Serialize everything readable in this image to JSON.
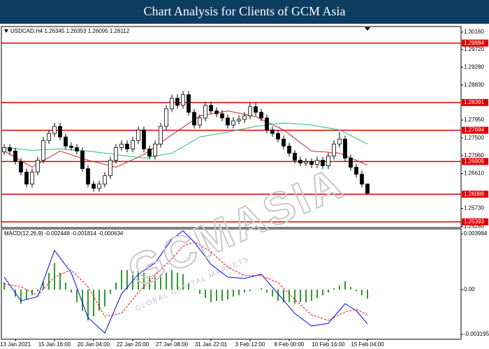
{
  "chart_data": {
    "type": "candlestick",
    "title": "Chart Analysis for Clients of GCM Asia",
    "header": "USDCAD,H4  1.26345 1.26353 1.26095 1.26112",
    "watermark": "GCMASIA",
    "watermark_sub": "GLOBAL CAPITAL MARKETS",
    "up_color": "#ffffff",
    "down_color": "#000000",
    "categories": [
      null,
      null,
      "13 Jan 2021",
      null,
      null,
      null,
      null,
      null,
      null,
      "15 Jan 16:00",
      null,
      null,
      null,
      null,
      null,
      null,
      "20 Jan 04:00",
      null,
      null,
      null,
      null,
      null,
      null,
      "22 Jan 20:00",
      null,
      null,
      null,
      null,
      null,
      null,
      "27 Jan 08:00",
      null,
      null,
      null,
      null,
      null,
      null,
      "31 Jan 22:01",
      null,
      null,
      null,
      null,
      null,
      null,
      "3 Feb 12:00",
      null,
      null,
      null,
      null,
      null,
      null,
      "8 Feb 00:00",
      null,
      null,
      null,
      null,
      null,
      null,
      "10 Feb 16:00",
      null,
      null,
      null,
      null,
      null,
      null,
      "15 Feb 04:00"
    ],
    "open": [
      1.2715,
      1.2726,
      1.27172,
      1.26907,
      1.26642,
      1.26341,
      1.26642,
      1.26942,
      1.27437,
      1.27614,
      1.27791,
      1.27526,
      1.27296,
      1.2726,
      1.27172,
      1.2673,
      1.26341,
      1.26235,
      1.26341,
      1.26553,
      1.26942,
      1.2726,
      1.27349,
      1.27225,
      1.27437,
      1.27703,
      1.27225,
      1.27048,
      1.27349,
      1.27791,
      1.28233,
      1.28498,
      1.28321,
      1.28587,
      1.28145,
      1.27826,
      1.28003,
      1.28321,
      1.2818,
      1.28109,
      1.28003,
      1.27826,
      1.27932,
      1.27968,
      1.28056,
      1.28286,
      1.28145,
      1.28003,
      1.27703,
      1.27614,
      1.27473,
      1.27296,
      1.27119,
      1.26942,
      1.26872,
      1.26907,
      1.26836,
      1.26942,
      1.26801,
      1.27048,
      1.27349,
      1.27473,
      1.26995,
      1.26765,
      1.26589,
      1.26345
    ],
    "high": [
      1.2735,
      1.2735,
      1.2726,
      1.2699,
      1.2673,
      1.2673,
      1.2703,
      1.2753,
      1.277,
      1.2788,
      1.2788,
      1.2761,
      1.2739,
      1.2735,
      1.2726,
      1.2682,
      1.2643,
      1.2643,
      1.2664,
      1.2703,
      1.2735,
      1.2744,
      1.2744,
      1.2753,
      1.2779,
      1.2779,
      1.2731,
      1.2744,
      1.2788,
      1.2832,
      1.2859,
      1.2859,
      1.2868,
      1.2868,
      1.2823,
      1.2809,
      1.2841,
      1.2841,
      1.2827,
      1.282,
      1.2809,
      1.2802,
      1.2806,
      1.2815,
      1.2838,
      1.2838,
      1.2823,
      1.2809,
      1.2779,
      1.277,
      1.2756,
      1.2738,
      1.272,
      1.2703,
      1.2699,
      1.2699,
      1.2703,
      1.2703,
      1.2713,
      1.2744,
      1.2765,
      1.2756,
      1.2708,
      1.2685,
      1.2668,
      1.26353
    ],
    "low": [
      1.2707,
      1.2709,
      1.2683,
      1.2656,
      1.2626,
      1.2626,
      1.2656,
      1.2686,
      1.2735,
      1.2753,
      1.2744,
      1.2721,
      1.2718,
      1.2709,
      1.2665,
      1.2626,
      1.2615,
      1.2615,
      1.2626,
      1.2647,
      1.2686,
      1.2718,
      1.2714,
      1.2714,
      1.2735,
      1.2714,
      1.2696,
      1.2696,
      1.2726,
      1.277,
      1.2815,
      1.2824,
      1.2824,
      1.2806,
      1.2774,
      1.2774,
      1.2792,
      1.281,
      1.2802,
      1.2792,
      1.2774,
      1.2774,
      1.2785,
      1.2788,
      1.2797,
      1.2806,
      1.2792,
      1.2762,
      1.2753,
      1.2739,
      1.2721,
      1.2703,
      1.2686,
      1.2679,
      1.2679,
      1.2675,
      1.2675,
      1.2672,
      1.2672,
      1.2696,
      1.2726,
      1.2691,
      1.2668,
      1.265,
      1.2626,
      1.26095
    ],
    "close": [
      1.2726,
      1.27172,
      1.26907,
      1.26642,
      1.26341,
      1.26642,
      1.26942,
      1.27437,
      1.27614,
      1.27791,
      1.27526,
      1.27296,
      1.2726,
      1.27172,
      1.2673,
      1.26341,
      1.26235,
      1.26341,
      1.26553,
      1.26942,
      1.2726,
      1.27349,
      1.27225,
      1.27437,
      1.27703,
      1.27225,
      1.27048,
      1.27349,
      1.27791,
      1.28233,
      1.28498,
      1.28321,
      1.28587,
      1.28145,
      1.27826,
      1.28003,
      1.28321,
      1.2818,
      1.28109,
      1.28003,
      1.27826,
      1.27932,
      1.27968,
      1.28056,
      1.28286,
      1.28145,
      1.28003,
      1.27703,
      1.27614,
      1.27473,
      1.27296,
      1.27119,
      1.26942,
      1.26872,
      1.26907,
      1.26836,
      1.26942,
      1.26801,
      1.27048,
      1.27349,
      1.27473,
      1.26995,
      1.26765,
      1.26589,
      1.26341,
      1.26112
    ],
    "ma_lines": [
      {
        "color": "#e02020",
        "x": [
          0,
          5,
          10,
          15,
          20,
          25,
          30,
          35,
          40,
          45,
          50,
          55,
          60,
          65
        ],
        "values": [
          1.27172,
          1.26765,
          1.27172,
          1.26942,
          1.26765,
          1.27084,
          1.27579,
          1.28056,
          1.2818,
          1.28038,
          1.27703,
          1.27172,
          1.27119,
          1.26819
        ]
      },
      {
        "color": "#20c070",
        "x": [
          0,
          5,
          10,
          15,
          20,
          25,
          30,
          35,
          40,
          45,
          50,
          55,
          60,
          65
        ],
        "values": [
          1.2726,
          1.2719,
          1.27225,
          1.27172,
          1.27084,
          1.26995,
          1.27119,
          1.27526,
          1.27649,
          1.27791,
          1.27879,
          1.27826,
          1.27703,
          1.27349
        ]
      }
    ],
    "ylim": [
      1.2525,
      1.303
    ],
    "yticks": [
      {
        "value": 1.3016,
        "label": "1.30160"
      },
      {
        "value": 1.2972,
        "label": "1.29720"
      },
      {
        "value": 1.2928,
        "label": "1.29280"
      },
      {
        "value": 1.2883,
        "label": "1.28830"
      },
      {
        "value": 1.2795,
        "label": "1.27950"
      },
      {
        "value": 1.275,
        "label": "1.27500"
      },
      {
        "value": 1.2706,
        "label": "1.27060"
      },
      {
        "value": 1.2661,
        "label": "1.26610"
      },
      {
        "value": 1.2573,
        "label": "1.25730"
      },
      {
        "value": 1.2528,
        "label": "1.25280"
      }
    ],
    "levels": [
      1.29884,
      1.28391,
      1.27694,
      1.26909,
      1.26088,
      1.25393
    ],
    "level_color": "#e00000",
    "macd": {
      "label": "MACD(12,26,9) -0.002448 -0.001814 -0.000634",
      "ylim": [
        -0.00354,
        0.00433
      ],
      "yticks": [
        0.003984,
        {
          "value": 0,
          "label": "0.00"
        },
        -0.003195
      ],
      "histogram": {
        "color": "#2e9a2e",
        "values": [
          0.0005,
          0.0,
          -0.0005,
          -0.001,
          -0.0007,
          -0.0004,
          -0.0001,
          0.0006,
          0.0012,
          0.0019,
          0.0012,
          0.0005,
          -0.0002,
          -0.0009,
          -0.0015,
          -0.0022,
          -0.0019,
          -0.0015,
          -0.0012,
          -0.0003,
          0.0005,
          0.0014,
          0.0014,
          0.0013,
          0.0013,
          0.0012,
          0.001,
          0.0009,
          0.0011,
          0.0012,
          0.0014,
          0.0012,
          0.0011,
          0.0005,
          0.0,
          -0.0003,
          -0.0006,
          -0.0009,
          -0.0008,
          -0.0008,
          -0.0007,
          -0.0005,
          -0.0004,
          -0.0002,
          -0.0001,
          0.0,
          0.0001,
          -0.0002,
          -0.0005,
          -0.0008,
          -0.0009,
          -0.0009,
          -0.001,
          -0.0009,
          -0.0009,
          -0.0008,
          -0.0006,
          -0.0004,
          -0.0002,
          0.0001,
          0.0003,
          0.0006,
          0.0002,
          -0.0001,
          -0.0004,
          -0.000634
        ]
      },
      "main": {
        "color": "#0000ff",
        "x": [
          0,
          3,
          6,
          9,
          12,
          15,
          18,
          21,
          24,
          27,
          30,
          32,
          34,
          37,
          40,
          43,
          46,
          49,
          52,
          55,
          58,
          61,
          63,
          65
        ],
        "values": [
          0.0009,
          -0.0008,
          -0.0005,
          0.0028,
          0.0012,
          -0.002,
          -0.0031,
          -0.0003,
          0.0011,
          0.0019,
          0.0036,
          0.0042,
          0.0034,
          0.0018,
          0.0009,
          0.0008,
          0.0011,
          -0.0003,
          -0.0017,
          -0.0026,
          -0.0024,
          -0.001,
          -0.0015,
          -0.002448
        ]
      },
      "signal": {
        "color": "#ff0000",
        "x": [
          0,
          3,
          6,
          9,
          12,
          15,
          18,
          21,
          24,
          27,
          30,
          32,
          34,
          37,
          40,
          43,
          46,
          49,
          52,
          55,
          58,
          61,
          63,
          65
        ],
        "values": [
          0.0004,
          0.0002,
          -0.0004,
          0.0009,
          0.0014,
          0.0002,
          -0.0019,
          -0.0017,
          -0.0002,
          0.001,
          0.0022,
          0.0031,
          0.0034,
          0.0027,
          0.0016,
          0.001,
          0.001,
          0.0005,
          -0.0007,
          -0.0018,
          -0.0022,
          -0.0016,
          -0.0014,
          -0.001814
        ]
      }
    }
  }
}
